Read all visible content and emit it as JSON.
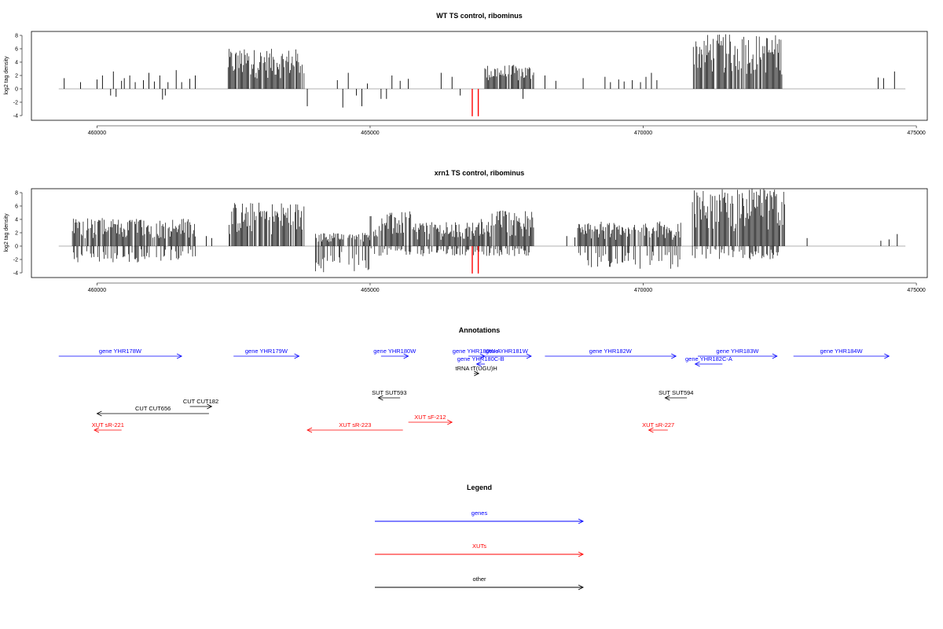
{
  "chart_data": [
    {
      "type": "bar",
      "title": "WT TS control, ribominus",
      "xlabel": "",
      "ylabel": "log2 tag density",
      "xlim": [
        458800,
        475200
      ],
      "ylim": [
        -5,
        9
      ],
      "xticks": [
        460000,
        465000,
        470000,
        475000
      ],
      "yticks": [
        -4,
        -2,
        0,
        2,
        4,
        6,
        8
      ],
      "baseline_color": "#999999",
      "bar_color": "#000000",
      "highlight_color": "#ff0000",
      "highlight_bars": [
        {
          "x": 466870,
          "y": -4.1
        },
        {
          "x": 466980,
          "y": -4.1
        }
      ],
      "sparse_bars": [
        [
          459400,
          1.6
        ],
        [
          459700,
          1.0
        ],
        [
          460000,
          1.4
        ],
        [
          460100,
          2.0
        ],
        [
          460250,
          -1.0
        ],
        [
          460300,
          2.6
        ],
        [
          460350,
          -1.2
        ],
        [
          460450,
          1.2
        ],
        [
          460500,
          1.6
        ],
        [
          460600,
          2.0
        ],
        [
          460700,
          1.0
        ],
        [
          460850,
          1.3
        ],
        [
          460950,
          2.4
        ],
        [
          461050,
          1.1
        ],
        [
          461150,
          2.0
        ],
        [
          461200,
          -1.6
        ],
        [
          461250,
          -1.0
        ],
        [
          461300,
          1.0
        ],
        [
          461450,
          2.8
        ],
        [
          461550,
          1.0
        ],
        [
          461700,
          1.5
        ],
        [
          461800,
          2.0
        ],
        [
          463850,
          -2.6
        ],
        [
          464400,
          1.3
        ],
        [
          464500,
          -2.8
        ],
        [
          464600,
          2.4
        ],
        [
          464750,
          -1.0
        ],
        [
          464850,
          -2.6
        ],
        [
          464950,
          0.8
        ],
        [
          465200,
          -1.5
        ],
        [
          465300,
          -1.5
        ],
        [
          465400,
          2.0
        ],
        [
          465550,
          1.2
        ],
        [
          465700,
          1.5
        ],
        [
          466300,
          2.4
        ],
        [
          466500,
          1.8
        ],
        [
          466650,
          -1.0
        ],
        [
          467800,
          -1.5
        ],
        [
          468200,
          2.0
        ],
        [
          468400,
          1.2
        ],
        [
          468900,
          1.6
        ],
        [
          469300,
          1.8
        ],
        [
          469400,
          1.0
        ],
        [
          469550,
          1.4
        ],
        [
          469650,
          1.1
        ],
        [
          469800,
          1.3
        ],
        [
          469950,
          1.0
        ],
        [
          470050,
          1.8
        ],
        [
          470150,
          2.4
        ],
        [
          470250,
          1.3
        ],
        [
          474300,
          1.7
        ],
        [
          474400,
          1.6
        ],
        [
          474600,
          2.6
        ]
      ],
      "dense_regions": [
        {
          "from": 462400,
          "to": 463800,
          "max_pos": 6.0,
          "max_neg": 0
        },
        {
          "from": 467100,
          "to": 468000,
          "max_pos": 3.6,
          "max_neg": 0
        },
        {
          "from": 470900,
          "to": 472550,
          "max_pos": 8.2,
          "max_neg": 0
        }
      ]
    },
    {
      "type": "bar",
      "title": "xrn1 TS control, ribominus",
      "xlabel": "",
      "ylabel": "log2 tag density",
      "xlim": [
        458800,
        475200
      ],
      "ylim": [
        -5,
        9
      ],
      "xticks": [
        460000,
        465000,
        470000,
        475000
      ],
      "yticks": [
        -4,
        -2,
        0,
        2,
        4,
        6,
        8
      ],
      "baseline_color": "#999999",
      "bar_color": "#000000",
      "highlight_color": "#ff0000",
      "highlight_bars": [
        {
          "x": 466870,
          "y": -4.1
        },
        {
          "x": 466980,
          "y": -4.1
        }
      ],
      "sparse_bars": [
        [
          462000,
          1.5
        ],
        [
          462100,
          1.2
        ],
        [
          468600,
          1.5
        ],
        [
          468750,
          1.3
        ],
        [
          473000,
          1.2
        ],
        [
          474350,
          0.8
        ],
        [
          474500,
          1.0
        ],
        [
          474650,
          1.8
        ]
      ],
      "dense_regions": [
        {
          "from": 459550,
          "to": 461800,
          "max_pos": 4.2,
          "max_neg": -2.5
        },
        {
          "from": 462400,
          "to": 463800,
          "max_pos": 6.6,
          "max_neg": 0
        },
        {
          "from": 464000,
          "to": 465000,
          "max_pos": 2.0,
          "max_neg": -4.0
        },
        {
          "from": 465000,
          "to": 465800,
          "max_pos": 5.2,
          "max_neg": -1.5
        },
        {
          "from": 465800,
          "to": 467000,
          "max_pos": 3.6,
          "max_neg": -1.5
        },
        {
          "from": 467000,
          "to": 468000,
          "max_pos": 5.4,
          "max_neg": -1.5
        },
        {
          "from": 468800,
          "to": 470700,
          "max_pos": 3.7,
          "max_neg": -3.5
        },
        {
          "from": 470900,
          "to": 472600,
          "max_pos": 8.6,
          "max_neg": -2.0
        }
      ]
    }
  ],
  "annotations": {
    "title": "Annotations",
    "colors": {
      "genes": "#0000ff",
      "xuts": "#ff0000",
      "other": "#000000"
    },
    "features": [
      {
        "label": "gene YHR178W",
        "from": 459300,
        "to": 461550,
        "dir": "+",
        "row": 0,
        "cat": "genes"
      },
      {
        "label": "gene YHR179W",
        "from": 462500,
        "to": 463700,
        "dir": "+",
        "row": 0,
        "cat": "genes"
      },
      {
        "label": "gene YHR180W",
        "from": 465200,
        "to": 465700,
        "dir": "+",
        "row": 0,
        "cat": "genes"
      },
      {
        "label": "gene YHR180W-A",
        "from": 466800,
        "to": 467100,
        "dir": "+",
        "row": 0,
        "cat": "genes"
      },
      {
        "label": "gene YHR181W",
        "from": 467050,
        "to": 467950,
        "dir": "+",
        "row": 0,
        "cat": "genes"
      },
      {
        "label": "gene YHR182W",
        "from": 468200,
        "to": 470600,
        "dir": "+",
        "row": 0,
        "cat": "genes"
      },
      {
        "label": "gene YHR183W",
        "from": 471000,
        "to": 472450,
        "dir": "+",
        "row": 0,
        "cat": "genes"
      },
      {
        "label": "gene YHR184W",
        "from": 472750,
        "to": 474500,
        "dir": "+",
        "row": 0,
        "cat": "genes"
      },
      {
        "label": "gene YHR180C-B",
        "from": 466950,
        "to": 467100,
        "dir": "-",
        "row": 1,
        "cat": "genes"
      },
      {
        "label": "gene YHR182C-A",
        "from": 470950,
        "to": 471450,
        "dir": "-",
        "row": 1,
        "cat": "genes"
      },
      {
        "label": "tRNA tT(UGU)H",
        "from": 466900,
        "to": 466990,
        "dir": "+",
        "row": 2,
        "cat": "other"
      },
      {
        "label": "SUT SUT593",
        "from": 465150,
        "to": 465550,
        "dir": "-",
        "row": 3,
        "cat": "other"
      },
      {
        "label": "SUT SUT594",
        "from": 470400,
        "to": 470800,
        "dir": "-",
        "row": 3,
        "cat": "other"
      },
      {
        "label": "CUT CUT182",
        "from": 461700,
        "to": 462100,
        "dir": "+",
        "row": 4,
        "cat": "other"
      },
      {
        "label": "CUT CUT656",
        "from": 460000,
        "to": 462050,
        "dir": "-",
        "row": 5,
        "cat": "other"
      },
      {
        "label": "XUT sF-212",
        "from": 465700,
        "to": 466500,
        "dir": "+",
        "row": 6,
        "cat": "xuts"
      },
      {
        "label": "XUT sR-221",
        "from": 459950,
        "to": 460450,
        "dir": "-",
        "row": 7,
        "cat": "xuts"
      },
      {
        "label": "XUT sR-223",
        "from": 463850,
        "to": 465600,
        "dir": "-",
        "row": 7,
        "cat": "xuts"
      },
      {
        "label": "XUT sR-227",
        "from": 470100,
        "to": 470450,
        "dir": "-",
        "row": 7,
        "cat": "xuts"
      }
    ]
  },
  "legend": {
    "title": "Legend",
    "items": [
      {
        "label": "genes",
        "color": "#0000ff"
      },
      {
        "label": "XUTs",
        "color": "#ff0000"
      },
      {
        "label": "other",
        "color": "#000000"
      }
    ]
  }
}
